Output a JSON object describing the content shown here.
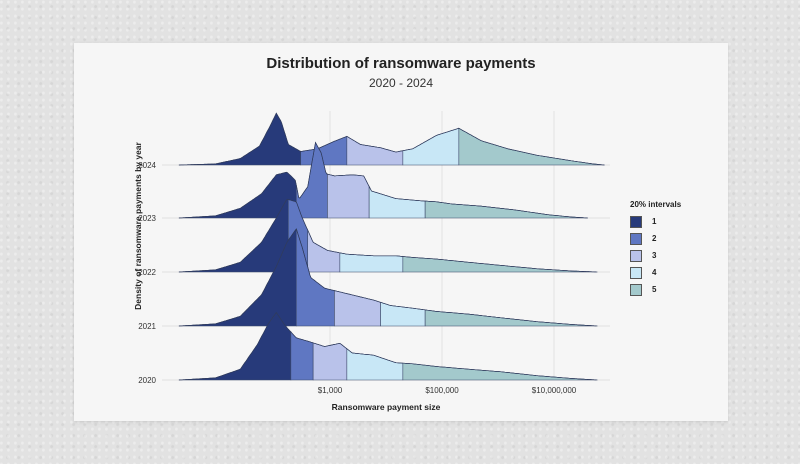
{
  "chart_data": {
    "type": "ridgeline",
    "title": "Distribution of ransomware payments",
    "subtitle": "2020 - 2024",
    "xlabel": "Ransomware payment size",
    "ylabel": "Density of ransomware payments by year",
    "x_scale": "log10",
    "xlim": [
      1,
      100000000
    ],
    "x_ticks": [
      {
        "value": 1000,
        "label": "$1,000"
      },
      {
        "value": 100000,
        "label": "$100,000"
      },
      {
        "value": 10000000,
        "label": "$10,000,000"
      }
    ],
    "legend": {
      "title": "20% intervals",
      "placement": "right",
      "items": [
        {
          "label": "1",
          "color": "#273a7a"
        },
        {
          "label": "2",
          "color": "#5f77c2"
        },
        {
          "label": "3",
          "color": "#b9c2ea"
        },
        {
          "label": "4",
          "color": "#c8e7f6"
        },
        {
          "label": "5",
          "color": "#a3c9cc"
        }
      ]
    },
    "series": [
      {
        "year": "2024",
        "quintile_breaks": [
          100,
          300,
          2000,
          20000,
          200000
        ],
        "density": [
          [
            2,
            0
          ],
          [
            9,
            0.02
          ],
          [
            25,
            0.12
          ],
          [
            55,
            0.35
          ],
          [
            85,
            0.72
          ],
          [
            110,
            0.96
          ],
          [
            135,
            0.8
          ],
          [
            180,
            0.38
          ],
          [
            300,
            0.25
          ],
          [
            600,
            0.3
          ],
          [
            1200,
            0.44
          ],
          [
            2000,
            0.53
          ],
          [
            3500,
            0.38
          ],
          [
            8000,
            0.32
          ],
          [
            15000,
            0.24
          ],
          [
            30000,
            0.3
          ],
          [
            80000,
            0.55
          ],
          [
            200000,
            0.68
          ],
          [
            500000,
            0.45
          ],
          [
            1500000,
            0.3
          ],
          [
            5000000,
            0.18
          ],
          [
            20000000,
            0.08
          ],
          [
            50000000,
            0.02
          ],
          [
            80000000,
            0
          ]
        ]
      },
      {
        "year": "2023",
        "quintile_breaks": [
          70,
          250,
          900,
          5000,
          50000
        ],
        "density": [
          [
            2,
            0
          ],
          [
            9,
            0.04
          ],
          [
            25,
            0.18
          ],
          [
            60,
            0.45
          ],
          [
            110,
            0.8
          ],
          [
            170,
            0.85
          ],
          [
            240,
            0.7
          ],
          [
            280,
            0.35
          ],
          [
            400,
            0.58
          ],
          [
            550,
            1.4
          ],
          [
            700,
            1.2
          ],
          [
            850,
            0.82
          ],
          [
            1200,
            0.78
          ],
          [
            2500,
            0.8
          ],
          [
            4000,
            0.78
          ],
          [
            5500,
            0.5
          ],
          [
            15000,
            0.36
          ],
          [
            40000,
            0.32
          ],
          [
            80000,
            0.3
          ],
          [
            150000,
            0.26
          ],
          [
            500000,
            0.22
          ],
          [
            2000000,
            0.15
          ],
          [
            8000000,
            0.06
          ],
          [
            20000000,
            0.02
          ],
          [
            40000000,
            0
          ]
        ]
      },
      {
        "year": "2022",
        "quintile_breaks": [
          70,
          180,
          400,
          1500,
          20000
        ],
        "density": [
          [
            2,
            0
          ],
          [
            9,
            0.04
          ],
          [
            25,
            0.18
          ],
          [
            60,
            0.55
          ],
          [
            110,
            1.0
          ],
          [
            170,
            1.35
          ],
          [
            250,
            1.3
          ],
          [
            320,
            1.0
          ],
          [
            500,
            0.55
          ],
          [
            900,
            0.4
          ],
          [
            2000,
            0.33
          ],
          [
            6000,
            0.3
          ],
          [
            15000,
            0.3
          ],
          [
            30000,
            0.27
          ],
          [
            80000,
            0.24
          ],
          [
            300000,
            0.18
          ],
          [
            1200000,
            0.12
          ],
          [
            5000000,
            0.06
          ],
          [
            20000000,
            0.02
          ],
          [
            60000000,
            0
          ]
        ]
      },
      {
        "year": "2021",
        "quintile_breaks": [
          80,
          250,
          1200,
          8000,
          50000
        ],
        "density": [
          [
            2,
            0
          ],
          [
            9,
            0.04
          ],
          [
            25,
            0.18
          ],
          [
            60,
            0.58
          ],
          [
            110,
            1.1
          ],
          [
            170,
            1.55
          ],
          [
            250,
            1.8
          ],
          [
            320,
            1.45
          ],
          [
            450,
            0.9
          ],
          [
            800,
            0.7
          ],
          [
            2000,
            0.6
          ],
          [
            6000,
            0.48
          ],
          [
            12000,
            0.38
          ],
          [
            30000,
            0.33
          ],
          [
            80000,
            0.27
          ],
          [
            300000,
            0.22
          ],
          [
            1200000,
            0.15
          ],
          [
            5000000,
            0.08
          ],
          [
            20000000,
            0.03
          ],
          [
            60000000,
            0
          ]
        ]
      },
      {
        "year": "2020",
        "quintile_breaks": [
          60,
          200,
          500,
          2000,
          20000
        ],
        "density": [
          [
            2,
            0
          ],
          [
            9,
            0.04
          ],
          [
            25,
            0.2
          ],
          [
            50,
            0.65
          ],
          [
            80,
            1.05
          ],
          [
            110,
            1.25
          ],
          [
            160,
            1.0
          ],
          [
            250,
            0.78
          ],
          [
            400,
            0.72
          ],
          [
            800,
            0.62
          ],
          [
            1500,
            0.68
          ],
          [
            2500,
            0.5
          ],
          [
            6000,
            0.46
          ],
          [
            15000,
            0.32
          ],
          [
            30000,
            0.3
          ],
          [
            80000,
            0.25
          ],
          [
            300000,
            0.2
          ],
          [
            1200000,
            0.15
          ],
          [
            5000000,
            0.08
          ],
          [
            20000000,
            0.03
          ],
          [
            60000000,
            0
          ]
        ]
      }
    ]
  }
}
